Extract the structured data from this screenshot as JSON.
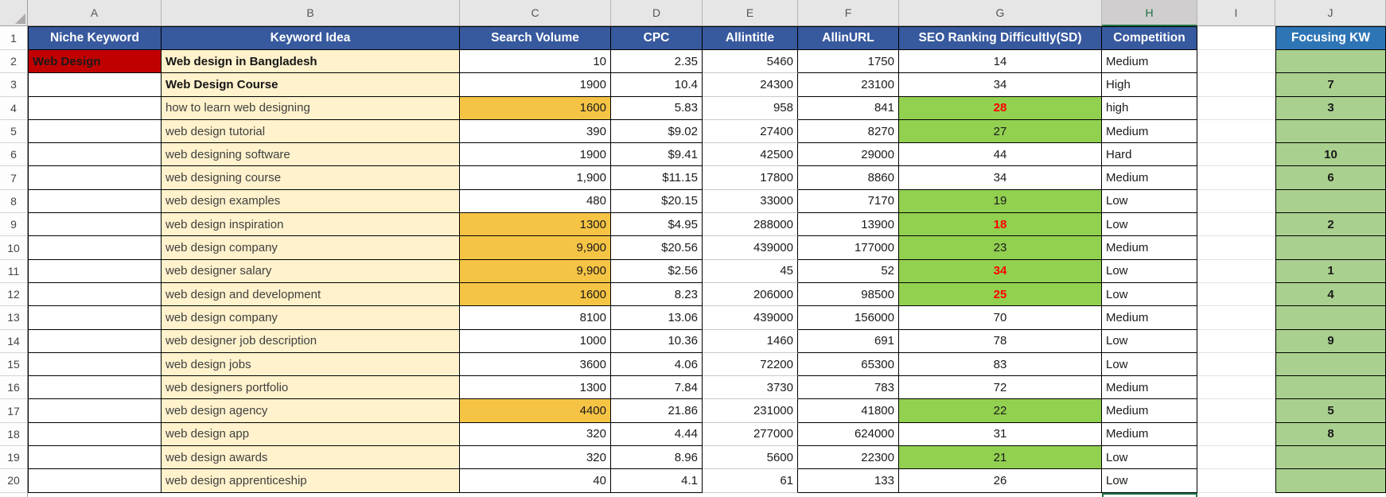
{
  "app": "spreadsheet-keyword-research",
  "column_letters": [
    "A",
    "B",
    "C",
    "D",
    "E",
    "F",
    "G",
    "H",
    "I",
    "J"
  ],
  "selected_column": "H",
  "selected_cell": "H21",
  "header_row": {
    "niche_keyword": "Niche Keyword",
    "keyword_idea": "Keyword Idea",
    "search_volume": "Search Volume",
    "cpc": "CPC",
    "allintitle": "Allintitle",
    "allinurl": "AllinURL",
    "seo_rank": "SEO Ranking Difficultly(SD)",
    "competition": "Competition",
    "focusing_kw": "Focusing KW"
  },
  "colors": {
    "header_blue": "#37599E",
    "focusing_header_blue": "#2E75B6",
    "niche_red": "#C00000",
    "idea_cream": "#FFF2CC",
    "volume_gold": "#F6C445",
    "sd_green": "#92D050",
    "focusing_green": "#A9D08E",
    "alert_red": "#FF0000",
    "selection_green": "#217346"
  },
  "rows": [
    {
      "n": 2,
      "niche": "Web Design",
      "idea": "Web design in Bangladesh",
      "idea_bold": true,
      "vol": "10",
      "gold": false,
      "cpc": "2.35",
      "title": "5460",
      "url": "1750",
      "sd": "14",
      "sd_green": false,
      "sd_red": false,
      "comp": "Medium",
      "kw": ""
    },
    {
      "n": 3,
      "niche": "",
      "idea": "Web Design Course",
      "idea_bold": true,
      "vol": "1900",
      "gold": false,
      "cpc": "10.4",
      "title": "24300",
      "url": "23100",
      "sd": "34",
      "sd_green": false,
      "sd_red": false,
      "comp": "High",
      "kw": "7"
    },
    {
      "n": 4,
      "niche": "",
      "idea": "how to learn web designing",
      "idea_bold": false,
      "vol": "1600",
      "gold": true,
      "cpc": "5.83",
      "title": "958",
      "url": "841",
      "sd": "28",
      "sd_green": true,
      "sd_red": true,
      "comp": "high",
      "kw": "3"
    },
    {
      "n": 5,
      "niche": "",
      "idea": "web design tutorial",
      "idea_bold": false,
      "vol": "390",
      "gold": false,
      "cpc": "$9.02",
      "title": "27400",
      "url": "8270",
      "sd": "27",
      "sd_green": true,
      "sd_red": false,
      "comp": "Medium",
      "kw": ""
    },
    {
      "n": 6,
      "niche": "",
      "idea": "web designing software",
      "idea_bold": false,
      "vol": "1900",
      "gold": false,
      "cpc": "$9.41",
      "title": "42500",
      "url": "29000",
      "sd": "44",
      "sd_green": false,
      "sd_red": false,
      "comp": "Hard",
      "kw": "10"
    },
    {
      "n": 7,
      "niche": "",
      "idea": "web designing course",
      "idea_bold": false,
      "vol": "1,900",
      "gold": false,
      "cpc": "$11.15",
      "title": "17800",
      "url": "8860",
      "sd": "34",
      "sd_green": false,
      "sd_red": false,
      "comp": "Medium",
      "kw": "6"
    },
    {
      "n": 8,
      "niche": "",
      "idea": "web design examples",
      "idea_bold": false,
      "vol": "480",
      "gold": false,
      "cpc": "$20.15",
      "title": "33000",
      "url": "7170",
      "sd": "19",
      "sd_green": true,
      "sd_red": false,
      "comp": "Low",
      "kw": ""
    },
    {
      "n": 9,
      "niche": "",
      "idea": "web design inspiration",
      "idea_bold": false,
      "vol": "1300",
      "gold": true,
      "cpc": "$4.95",
      "title": "288000",
      "url": "13900",
      "sd": "18",
      "sd_green": true,
      "sd_red": true,
      "comp": "Low",
      "kw": "2"
    },
    {
      "n": 10,
      "niche": "",
      "idea": "web design company",
      "idea_bold": false,
      "vol": "9,900",
      "gold": true,
      "cpc": "$20.56",
      "title": "439000",
      "url": "177000",
      "sd": "23",
      "sd_green": true,
      "sd_red": false,
      "comp": "Medium",
      "kw": ""
    },
    {
      "n": 11,
      "niche": "",
      "idea": "web designer salary",
      "idea_bold": false,
      "vol": "9,900",
      "gold": true,
      "cpc": "$2.56",
      "title": "45",
      "url": "52",
      "sd": "34",
      "sd_green": true,
      "sd_red": true,
      "comp": "Low",
      "kw": "1"
    },
    {
      "n": 12,
      "niche": "",
      "idea": "web design and development",
      "idea_bold": false,
      "vol": "1600",
      "gold": true,
      "cpc": "8.23",
      "title": "206000",
      "url": "98500",
      "sd": "25",
      "sd_green": true,
      "sd_red": true,
      "comp": "Low",
      "kw": "4"
    },
    {
      "n": 13,
      "niche": "",
      "idea": "web design company",
      "idea_bold": false,
      "vol": "8100",
      "gold": false,
      "cpc": "13.06",
      "title": "439000",
      "url": "156000",
      "sd": "70",
      "sd_green": false,
      "sd_red": false,
      "comp": "Medium",
      "kw": ""
    },
    {
      "n": 14,
      "niche": "",
      "idea": "web designer job description",
      "idea_bold": false,
      "vol": "1000",
      "gold": false,
      "cpc": "10.36",
      "title": "1460",
      "url": "691",
      "sd": "78",
      "sd_green": false,
      "sd_red": false,
      "comp": "Low",
      "kw": "9"
    },
    {
      "n": 15,
      "niche": "",
      "idea": "web design jobs",
      "idea_bold": false,
      "vol": "3600",
      "gold": false,
      "cpc": "4.06",
      "title": "72200",
      "url": "65300",
      "sd": "83",
      "sd_green": false,
      "sd_red": false,
      "comp": "Low",
      "kw": ""
    },
    {
      "n": 16,
      "niche": "",
      "idea": "web designers portfolio",
      "idea_bold": false,
      "vol": "1300",
      "gold": false,
      "cpc": "7.84",
      "title": "3730",
      "url": "783",
      "sd": "72",
      "sd_green": false,
      "sd_red": false,
      "comp": "Medium",
      "kw": ""
    },
    {
      "n": 17,
      "niche": "",
      "idea": "web design agency",
      "idea_bold": false,
      "vol": "4400",
      "gold": true,
      "cpc": "21.86",
      "title": "231000",
      "url": "41800",
      "sd": "22",
      "sd_green": true,
      "sd_red": false,
      "comp": "Medium",
      "kw": "5"
    },
    {
      "n": 18,
      "niche": "",
      "idea": "web design app",
      "idea_bold": false,
      "vol": "320",
      "gold": false,
      "cpc": "4.44",
      "title": "277000",
      "url": "624000",
      "sd": "31",
      "sd_green": false,
      "sd_red": false,
      "comp": "Medium",
      "kw": "8"
    },
    {
      "n": 19,
      "niche": "",
      "idea": "web design awards",
      "idea_bold": false,
      "vol": "320",
      "gold": false,
      "cpc": "8.96",
      "title": "5600",
      "url": "22300",
      "sd": "21",
      "sd_green": true,
      "sd_red": false,
      "comp": "Low",
      "kw": ""
    },
    {
      "n": 20,
      "niche": "",
      "idea": "web design apprenticeship",
      "idea_bold": false,
      "vol": "40",
      "gold": false,
      "cpc": "4.1",
      "title": "61",
      "url": "133",
      "sd": "26",
      "sd_green": false,
      "sd_red": false,
      "comp": "Low",
      "kw": ""
    }
  ]
}
